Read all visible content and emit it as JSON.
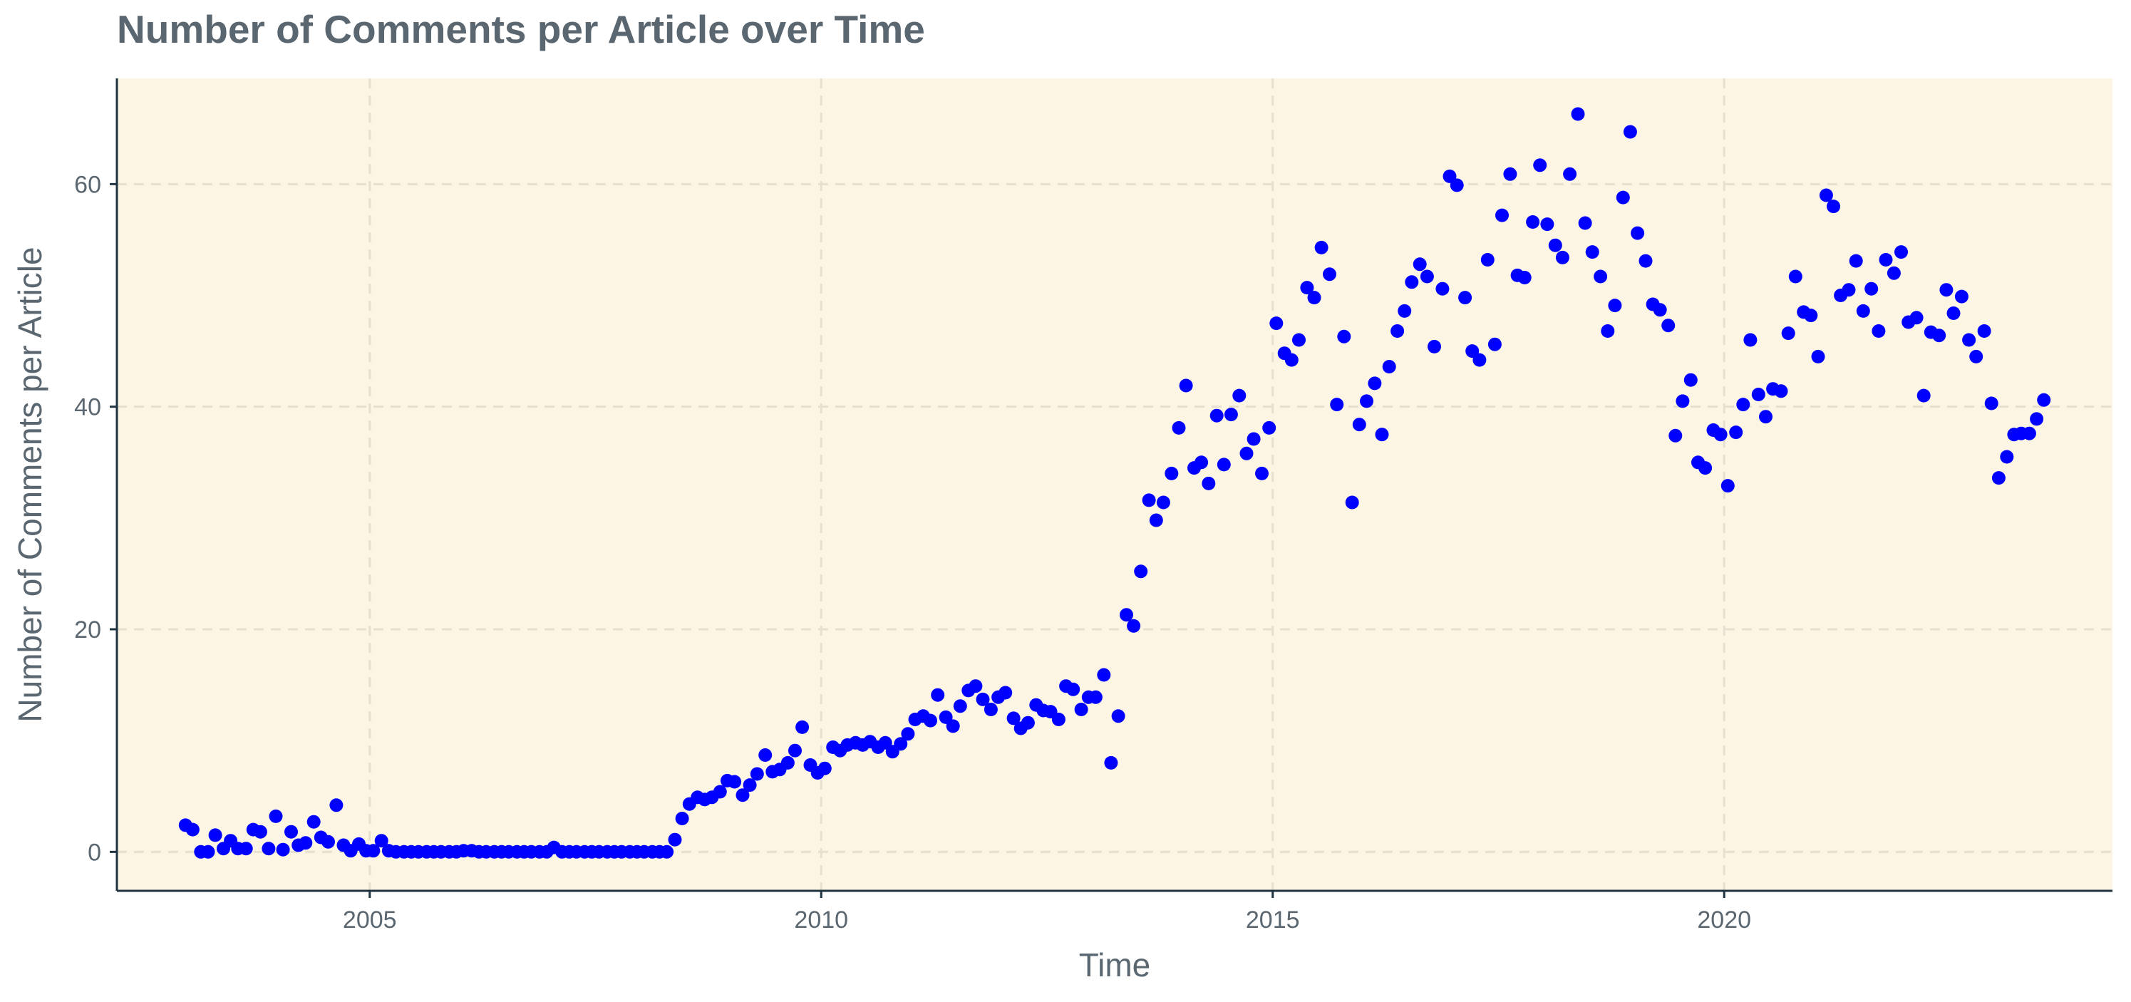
{
  "chart_data": {
    "type": "scatter",
    "title": "Number of Comments per Article over Time",
    "xlabel": "Time",
    "ylabel": "Number of Comments per Article",
    "xlim": [
      2002.2,
      2024.3
    ],
    "ylim": [
      -3.5,
      69.5
    ],
    "x_ticks": [
      2005,
      2010,
      2015,
      2020
    ],
    "y_ticks": [
      0,
      20,
      40,
      60
    ],
    "grid": true,
    "legend": "none",
    "colors": {
      "points": "#0000ff",
      "panel": "#fdf5e3",
      "grid": "#e6e0d0",
      "axis": "#1f3340"
    },
    "points": [
      [
        2002.96,
        2.4
      ],
      [
        2003.04,
        2.0
      ],
      [
        2003.13,
        0.0
      ],
      [
        2003.21,
        0.0
      ],
      [
        2003.29,
        1.5
      ],
      [
        2003.38,
        0.3
      ],
      [
        2003.46,
        1.0
      ],
      [
        2003.54,
        0.3
      ],
      [
        2003.63,
        0.3
      ],
      [
        2003.71,
        2.0
      ],
      [
        2003.79,
        1.8
      ],
      [
        2003.88,
        0.3
      ],
      [
        2003.96,
        3.2
      ],
      [
        2004.04,
        0.2
      ],
      [
        2004.13,
        1.8
      ],
      [
        2004.21,
        0.6
      ],
      [
        2004.29,
        0.8
      ],
      [
        2004.38,
        2.7
      ],
      [
        2004.46,
        1.3
      ],
      [
        2004.54,
        0.9
      ],
      [
        2004.63,
        4.2
      ],
      [
        2004.71,
        0.6
      ],
      [
        2004.79,
        0.1
      ],
      [
        2004.88,
        0.7
      ],
      [
        2004.96,
        0.1
      ],
      [
        2005.04,
        0.1
      ],
      [
        2005.13,
        1.0
      ],
      [
        2005.21,
        0.1
      ],
      [
        2005.29,
        0.0
      ],
      [
        2005.38,
        0.0
      ],
      [
        2005.46,
        0.0
      ],
      [
        2005.54,
        0.0
      ],
      [
        2005.63,
        0.0
      ],
      [
        2005.71,
        0.0
      ],
      [
        2005.79,
        0.0
      ],
      [
        2005.88,
        0.0
      ],
      [
        2005.96,
        0.0
      ],
      [
        2006.04,
        0.1
      ],
      [
        2006.13,
        0.1
      ],
      [
        2006.21,
        0.0
      ],
      [
        2006.29,
        0.0
      ],
      [
        2006.38,
        0.0
      ],
      [
        2006.46,
        0.0
      ],
      [
        2006.54,
        0.0
      ],
      [
        2006.63,
        0.0
      ],
      [
        2006.71,
        0.0
      ],
      [
        2006.79,
        0.0
      ],
      [
        2006.88,
        0.0
      ],
      [
        2006.96,
        0.0
      ],
      [
        2007.04,
        0.4
      ],
      [
        2007.13,
        0.0
      ],
      [
        2007.21,
        0.0
      ],
      [
        2007.29,
        0.0
      ],
      [
        2007.38,
        0.0
      ],
      [
        2007.46,
        0.0
      ],
      [
        2007.54,
        0.0
      ],
      [
        2007.63,
        0.0
      ],
      [
        2007.71,
        0.0
      ],
      [
        2007.79,
        0.0
      ],
      [
        2007.88,
        0.0
      ],
      [
        2007.96,
        0.0
      ],
      [
        2008.04,
        0.0
      ],
      [
        2008.13,
        0.0
      ],
      [
        2008.21,
        0.0
      ],
      [
        2008.29,
        0.0
      ],
      [
        2008.38,
        1.1
      ],
      [
        2008.46,
        3.0
      ],
      [
        2008.54,
        4.3
      ],
      [
        2008.63,
        4.9
      ],
      [
        2008.71,
        4.7
      ],
      [
        2008.79,
        4.9
      ],
      [
        2008.88,
        5.4
      ],
      [
        2008.96,
        6.4
      ],
      [
        2009.04,
        6.3
      ],
      [
        2009.13,
        5.1
      ],
      [
        2009.21,
        6.0
      ],
      [
        2009.29,
        7.0
      ],
      [
        2009.38,
        8.7
      ],
      [
        2009.46,
        7.2
      ],
      [
        2009.54,
        7.4
      ],
      [
        2009.63,
        8.0
      ],
      [
        2009.71,
        9.1
      ],
      [
        2009.79,
        11.2
      ],
      [
        2009.88,
        7.8
      ],
      [
        2009.96,
        7.1
      ],
      [
        2010.04,
        7.5
      ],
      [
        2010.13,
        9.4
      ],
      [
        2010.21,
        9.1
      ],
      [
        2010.29,
        9.6
      ],
      [
        2010.38,
        9.8
      ],
      [
        2010.46,
        9.6
      ],
      [
        2010.54,
        9.9
      ],
      [
        2010.63,
        9.4
      ],
      [
        2010.71,
        9.8
      ],
      [
        2010.79,
        9.0
      ],
      [
        2010.88,
        9.7
      ],
      [
        2010.96,
        10.6
      ],
      [
        2011.04,
        11.9
      ],
      [
        2011.13,
        12.2
      ],
      [
        2011.21,
        11.8
      ],
      [
        2011.29,
        14.1
      ],
      [
        2011.38,
        12.1
      ],
      [
        2011.46,
        11.3
      ],
      [
        2011.54,
        13.1
      ],
      [
        2011.63,
        14.5
      ],
      [
        2011.71,
        14.9
      ],
      [
        2011.79,
        13.7
      ],
      [
        2011.88,
        12.8
      ],
      [
        2011.96,
        13.9
      ],
      [
        2012.04,
        14.3
      ],
      [
        2012.13,
        12.0
      ],
      [
        2012.21,
        11.1
      ],
      [
        2012.29,
        11.6
      ],
      [
        2012.38,
        13.2
      ],
      [
        2012.46,
        12.7
      ],
      [
        2012.54,
        12.6
      ],
      [
        2012.63,
        11.9
      ],
      [
        2012.71,
        14.9
      ],
      [
        2012.79,
        14.6
      ],
      [
        2012.88,
        12.8
      ],
      [
        2012.96,
        13.9
      ],
      [
        2013.04,
        13.9
      ],
      [
        2013.13,
        15.9
      ],
      [
        2013.21,
        8.0
      ],
      [
        2013.29,
        12.2
      ],
      [
        2013.38,
        21.3
      ],
      [
        2013.46,
        20.3
      ],
      [
        2013.54,
        25.2
      ],
      [
        2013.63,
        31.6
      ],
      [
        2013.71,
        29.8
      ],
      [
        2013.79,
        31.4
      ],
      [
        2013.88,
        34.0
      ],
      [
        2013.96,
        38.1
      ],
      [
        2014.04,
        41.9
      ],
      [
        2014.13,
        34.5
      ],
      [
        2014.21,
        35.0
      ],
      [
        2014.29,
        33.1
      ],
      [
        2014.38,
        39.2
      ],
      [
        2014.46,
        34.8
      ],
      [
        2014.54,
        39.3
      ],
      [
        2014.63,
        41.0
      ],
      [
        2014.71,
        35.8
      ],
      [
        2014.79,
        37.1
      ],
      [
        2014.88,
        34.0
      ],
      [
        2014.96,
        38.1
      ],
      [
        2015.04,
        47.5
      ],
      [
        2015.13,
        44.8
      ],
      [
        2015.21,
        44.2
      ],
      [
        2015.29,
        46.0
      ],
      [
        2015.38,
        50.7
      ],
      [
        2015.46,
        49.8
      ],
      [
        2015.54,
        54.3
      ],
      [
        2015.63,
        51.9
      ],
      [
        2015.71,
        40.2
      ],
      [
        2015.79,
        46.3
      ],
      [
        2015.88,
        31.4
      ],
      [
        2015.96,
        38.4
      ],
      [
        2016.04,
        40.5
      ],
      [
        2016.13,
        42.1
      ],
      [
        2016.21,
        37.5
      ],
      [
        2016.29,
        43.6
      ],
      [
        2016.38,
        46.8
      ],
      [
        2016.46,
        48.6
      ],
      [
        2016.54,
        51.2
      ],
      [
        2016.63,
        52.8
      ],
      [
        2016.71,
        51.7
      ],
      [
        2016.79,
        45.4
      ],
      [
        2016.88,
        50.6
      ],
      [
        2016.96,
        60.7
      ],
      [
        2017.04,
        59.9
      ],
      [
        2017.13,
        49.8
      ],
      [
        2017.21,
        45.0
      ],
      [
        2017.29,
        44.2
      ],
      [
        2017.38,
        53.2
      ],
      [
        2017.46,
        45.6
      ],
      [
        2017.54,
        57.2
      ],
      [
        2017.63,
        60.9
      ],
      [
        2017.71,
        51.8
      ],
      [
        2017.79,
        51.6
      ],
      [
        2017.88,
        56.6
      ],
      [
        2017.96,
        61.7
      ],
      [
        2018.04,
        56.4
      ],
      [
        2018.13,
        54.5
      ],
      [
        2018.21,
        53.4
      ],
      [
        2018.29,
        60.9
      ],
      [
        2018.38,
        66.3
      ],
      [
        2018.46,
        56.5
      ],
      [
        2018.54,
        53.9
      ],
      [
        2018.63,
        51.7
      ],
      [
        2018.71,
        46.8
      ],
      [
        2018.79,
        49.1
      ],
      [
        2018.88,
        58.8
      ],
      [
        2018.96,
        64.7
      ],
      [
        2019.04,
        55.6
      ],
      [
        2019.13,
        53.1
      ],
      [
        2019.21,
        49.2
      ],
      [
        2019.29,
        48.7
      ],
      [
        2019.38,
        47.3
      ],
      [
        2019.46,
        37.4
      ],
      [
        2019.54,
        40.5
      ],
      [
        2019.63,
        42.4
      ],
      [
        2019.71,
        35.0
      ],
      [
        2019.79,
        34.5
      ],
      [
        2019.88,
        37.9
      ],
      [
        2019.96,
        37.5
      ],
      [
        2020.04,
        32.9
      ],
      [
        2020.13,
        37.7
      ],
      [
        2020.21,
        40.2
      ],
      [
        2020.29,
        46.0
      ],
      [
        2020.38,
        41.1
      ],
      [
        2020.46,
        39.1
      ],
      [
        2020.54,
        41.6
      ],
      [
        2020.63,
        41.4
      ],
      [
        2020.71,
        46.6
      ],
      [
        2020.79,
        51.7
      ],
      [
        2020.88,
        48.5
      ],
      [
        2020.96,
        48.2
      ],
      [
        2021.04,
        44.5
      ],
      [
        2021.13,
        59.0
      ],
      [
        2021.21,
        58.0
      ],
      [
        2021.29,
        50.0
      ],
      [
        2021.38,
        50.5
      ],
      [
        2021.46,
        53.1
      ],
      [
        2021.54,
        48.6
      ],
      [
        2021.63,
        50.6
      ],
      [
        2021.71,
        46.8
      ],
      [
        2021.79,
        53.2
      ],
      [
        2021.88,
        52.0
      ],
      [
        2021.96,
        53.9
      ],
      [
        2022.04,
        47.6
      ],
      [
        2022.13,
        48.0
      ],
      [
        2022.21,
        41.0
      ],
      [
        2022.29,
        46.7
      ],
      [
        2022.38,
        46.4
      ],
      [
        2022.46,
        50.5
      ],
      [
        2022.54,
        48.4
      ],
      [
        2022.63,
        49.9
      ],
      [
        2022.71,
        46.0
      ],
      [
        2022.79,
        44.5
      ],
      [
        2022.88,
        46.8
      ],
      [
        2022.96,
        40.3
      ],
      [
        2023.04,
        33.6
      ],
      [
        2023.13,
        35.5
      ],
      [
        2023.21,
        37.5
      ],
      [
        2023.29,
        37.6
      ],
      [
        2023.38,
        37.6
      ],
      [
        2023.46,
        38.9
      ],
      [
        2023.54,
        40.6
      ]
    ]
  }
}
